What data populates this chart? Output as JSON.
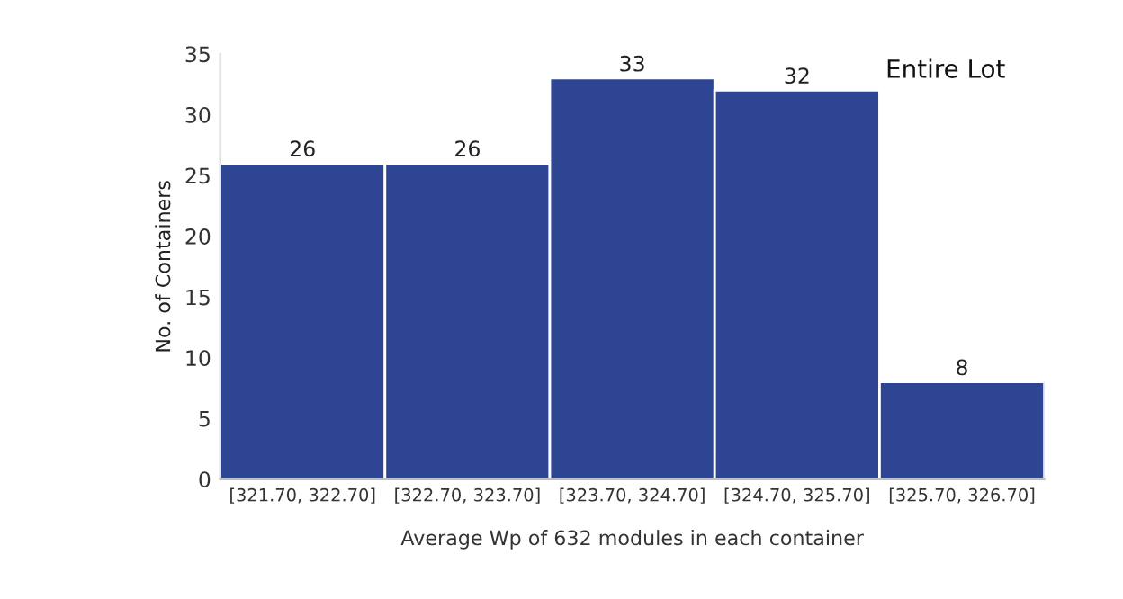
{
  "chart_data": {
    "type": "bar",
    "title": "Entire Lot",
    "xlabel": "Average Wp of 632 modules in each container",
    "ylabel": "No. of Containers",
    "categories": [
      "[321.70, 322.70]",
      "[322.70, 323.70]",
      "[323.70, 324.70]",
      "[324.70, 325.70]",
      "[325.70, 326.70]"
    ],
    "values": [
      26,
      26,
      33,
      32,
      8
    ],
    "color": "#2e4593",
    "ylim": [
      0,
      35
    ],
    "yticks": [
      0,
      5,
      10,
      15,
      20,
      25,
      30,
      35
    ],
    "grid": false,
    "data_labels": true,
    "legend": false
  }
}
